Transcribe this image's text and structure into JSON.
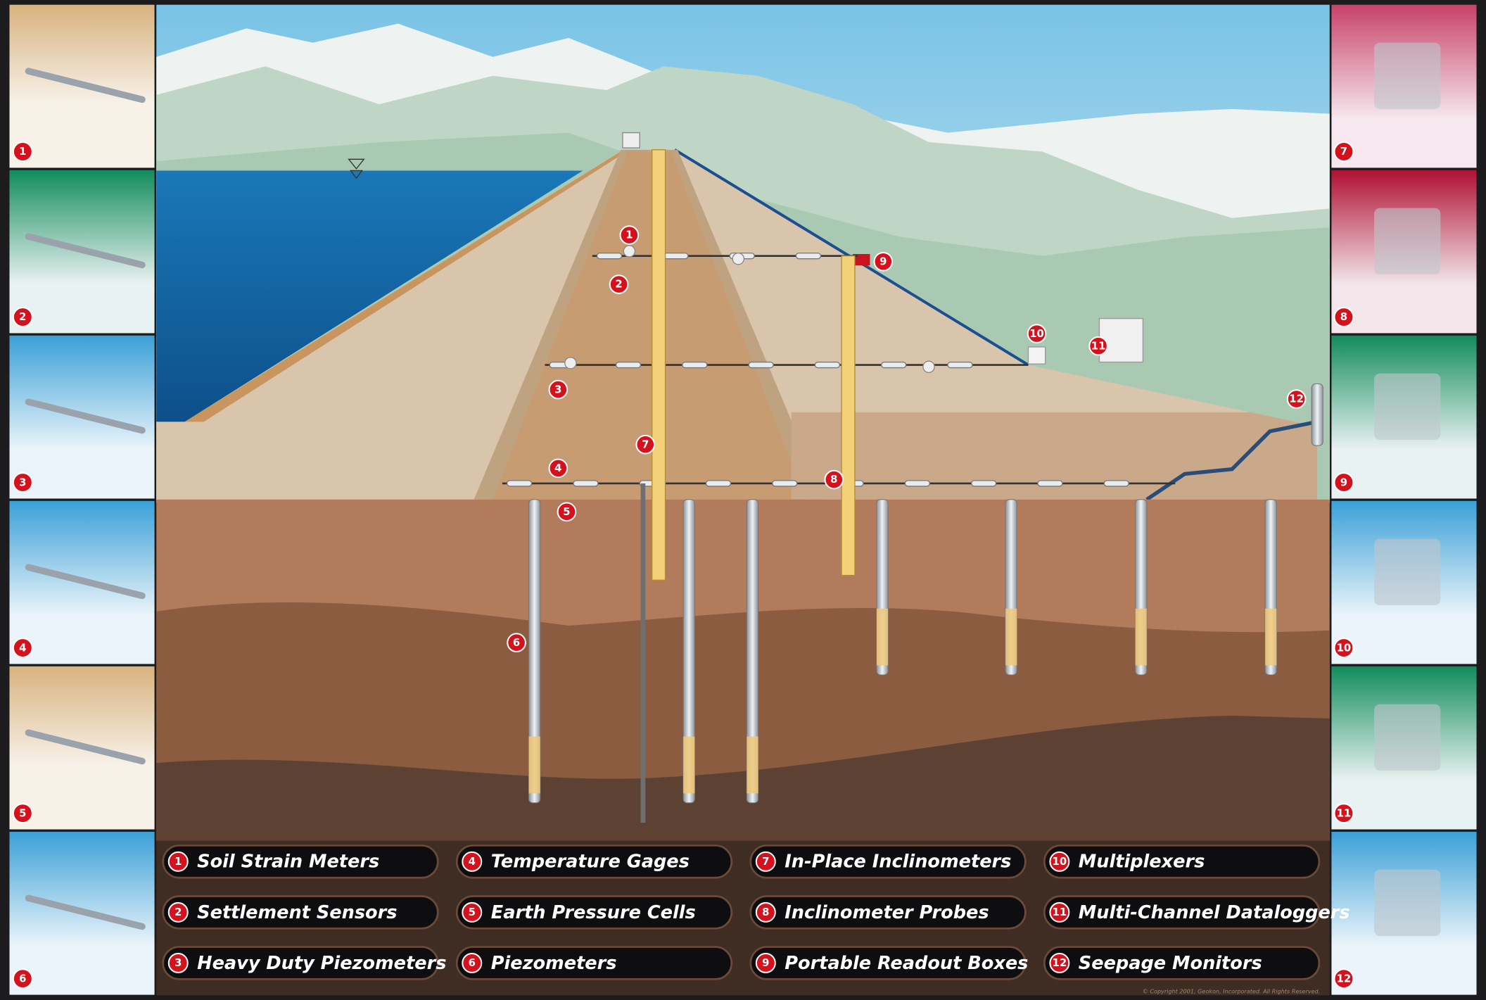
{
  "instruments": [
    {
      "number": "1",
      "label": "Soil Strain Meters"
    },
    {
      "number": "2",
      "label": "Settlement Sensors"
    },
    {
      "number": "3",
      "label": "Heavy Duty Piezometers"
    },
    {
      "number": "4",
      "label": "Temperature Gages"
    },
    {
      "number": "5",
      "label": "Earth Pressure Cells"
    },
    {
      "number": "6",
      "label": "Piezometers"
    },
    {
      "number": "7",
      "label": "In-Place Inclinometers"
    },
    {
      "number": "8",
      "label": "Inclinometer Probes"
    },
    {
      "number": "9",
      "label": "Portable Readout Boxes"
    },
    {
      "number": "10",
      "label": "Multiplexers"
    },
    {
      "number": "11",
      "label": "Multi-Channel Dataloggers"
    },
    {
      "number": "12",
      "label": "Seepage Monitors"
    }
  ],
  "copyright": "© Copyright 2001, Geokon, Incorporated. All Rights Reserved."
}
